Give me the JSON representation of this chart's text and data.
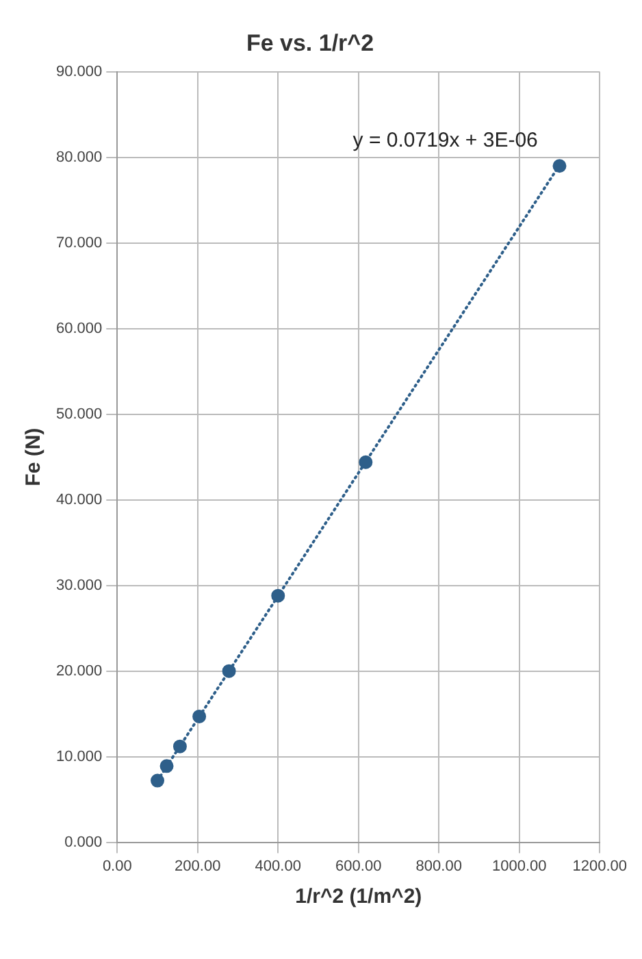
{
  "chart_data": {
    "type": "scatter",
    "title": "Fe vs. 1/r^2",
    "xlabel": "1/r^2 (1/m^2)",
    "ylabel": "Fe (N)",
    "series": [
      {
        "color": "#2e5f8a",
        "x": [
          100,
          123,
          156,
          204,
          278,
          400,
          618,
          1100
        ],
        "values": [
          7.2,
          8.9,
          11.2,
          14.7,
          20.0,
          28.8,
          44.4,
          79.0
        ]
      },
      {
        "type": "line",
        "color": "#2e5f8a",
        "x": [
          100,
          1100
        ],
        "values": [
          7.2,
          79.1
        ],
        "line_style": "dotted",
        "marker": "none"
      }
    ],
    "marker": "circle",
    "annotations": [
      "y = 0.0719x + 3E-06"
    ],
    "xlim": [
      0,
      1200
    ],
    "xticks": [
      {
        "value": 0,
        "label": "0.00"
      },
      {
        "value": 200,
        "label": "200.00"
      },
      {
        "value": 400,
        "label": "400.00"
      },
      {
        "value": 600,
        "label": "600.00"
      },
      {
        "value": 800,
        "label": "800.00"
      },
      {
        "value": 1000,
        "label": "1000.00"
      },
      {
        "value": 1200,
        "label": "1200.00"
      }
    ],
    "ylim": [
      0,
      90
    ],
    "yticks": [
      {
        "value": 0,
        "label": "0.000"
      },
      {
        "value": 10,
        "label": "10.000"
      },
      {
        "value": 20,
        "label": "20.000"
      },
      {
        "value": 30,
        "label": "30.000"
      },
      {
        "value": 40,
        "label": "40.000"
      },
      {
        "value": 50,
        "label": "50.000"
      },
      {
        "value": 60,
        "label": "60.000"
      },
      {
        "value": 70,
        "label": "70.000"
      },
      {
        "value": 80,
        "label": "80.000"
      },
      {
        "value": 90,
        "label": "90.000"
      }
    ],
    "grid": true,
    "legend": false
  }
}
